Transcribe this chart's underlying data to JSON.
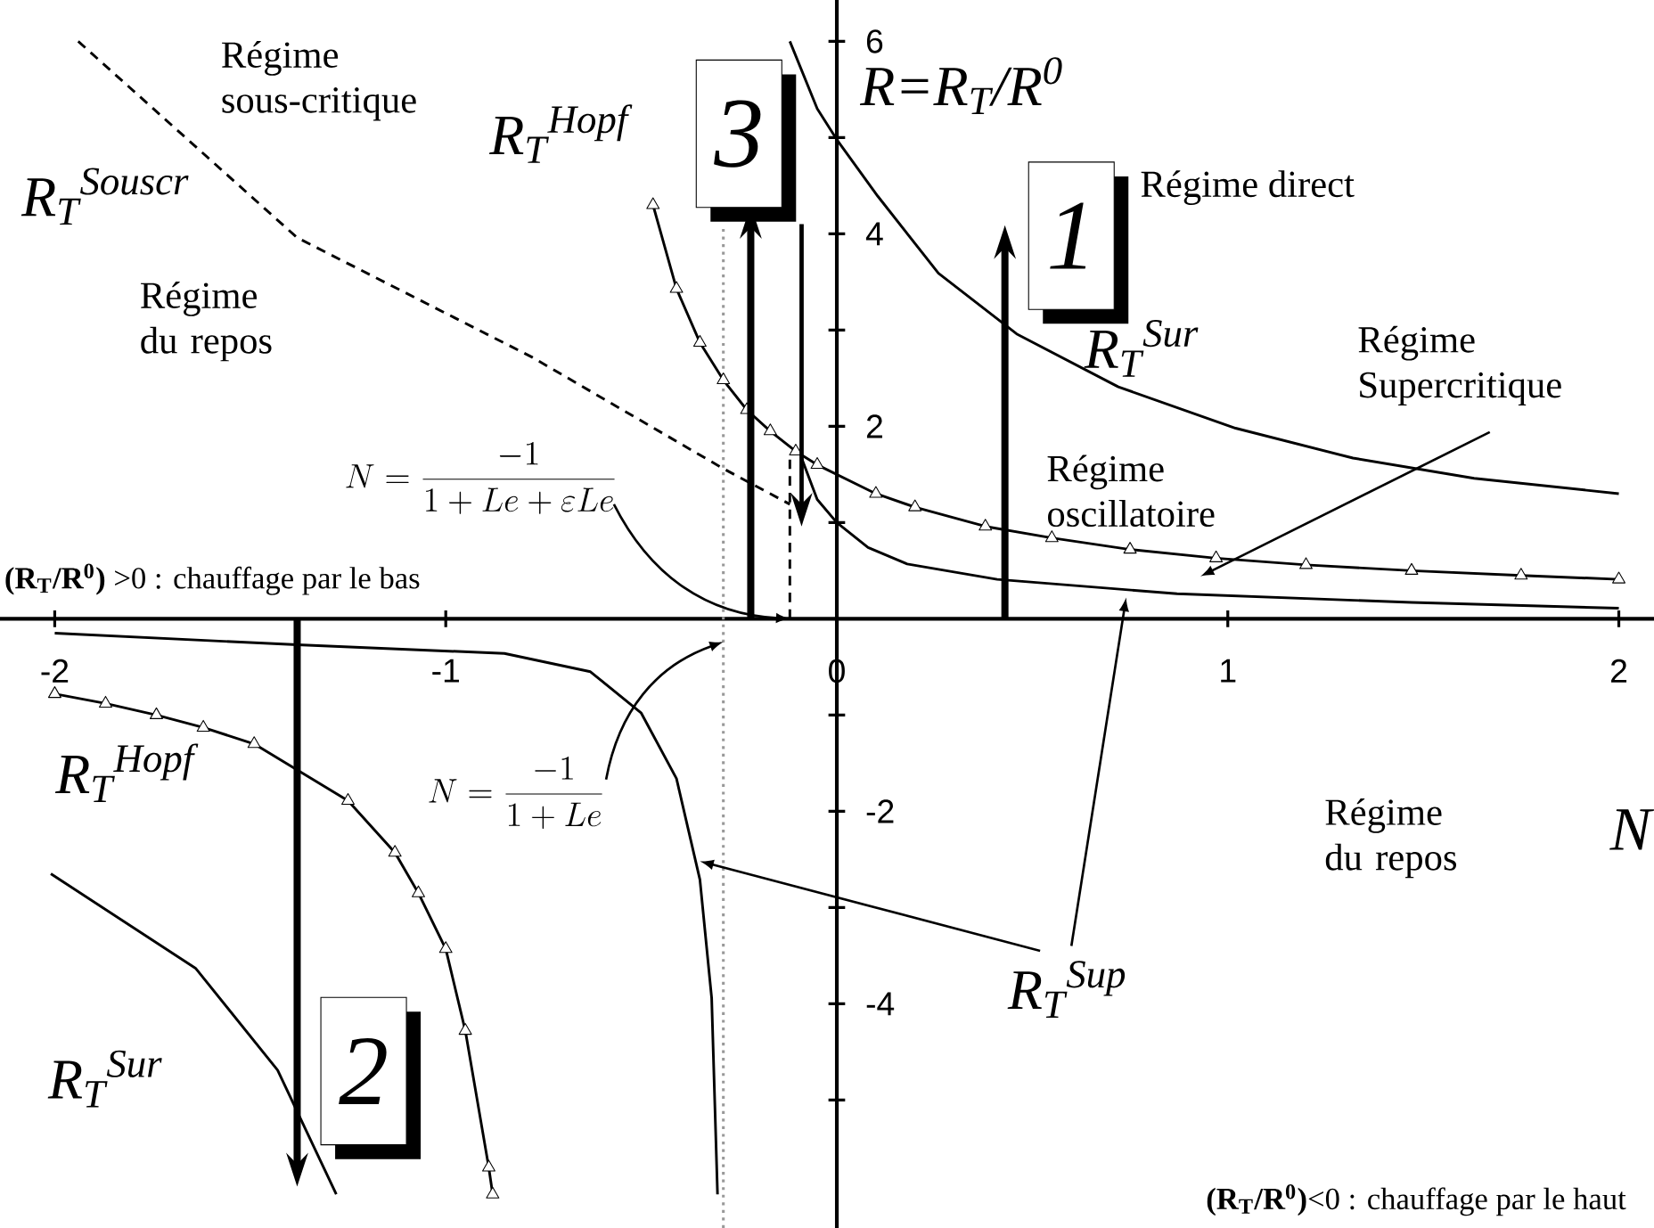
{
  "chart_data": {
    "type": "line",
    "xlabel": "N",
    "ylabel": "R=R$_{T}$/R$^{0}$",
    "xlim": [
      -2.14,
      2.09
    ],
    "ylim": [
      -6.33,
      6.43
    ],
    "xticks": [
      -2,
      -1,
      0,
      1,
      2
    ],
    "yticks": [
      {
        "value": -5,
        "label": null
      },
      -4,
      {
        "value": -3,
        "label": null
      },
      -2,
      {
        "value": -1,
        "label": null
      },
      {
        "value": 1,
        "label": null
      },
      2,
      {
        "value": 3,
        "label": null
      },
      4,
      {
        "value": 5,
        "label": null
      },
      6
    ],
    "grid": false,
    "legend": false,
    "marker": "none",
    "line_style": "solid",
    "series": [
      {
        "name": "R$_{T}$$^{Sur}$",
        "color": "#000000",
        "x": [
          -0.12,
          -0.05,
          0.0,
          0.105,
          0.26,
          0.46,
          0.72,
          1.02,
          1.32,
          1.63,
          2.0
        ],
        "values": [
          6.0,
          5.3,
          4.98,
          4.39,
          3.59,
          2.96,
          2.41,
          1.98,
          1.67,
          1.46,
          1.3
        ]
      },
      {
        "name": "R$_{T}$$^{Sur}$",
        "color": "#000000",
        "x": [
          -2.01,
          -1.64,
          -1.43,
          -1.28
        ],
        "values": [
          -2.65,
          -3.63,
          -4.69,
          -5.98
        ]
      },
      {
        "name": "R$_{T}$$^{Hopf}$",
        "color": "#000000",
        "marker": "triangle",
        "x": [
          -0.47,
          -0.41,
          -0.35,
          -0.29,
          -0.23,
          -0.17,
          -0.105,
          -0.05,
          0.1,
          0.2,
          0.38,
          0.55,
          0.75,
          0.97,
          1.2,
          1.47,
          1.75,
          2.0
        ],
        "values": [
          4.3,
          3.43,
          2.87,
          2.48,
          2.17,
          1.95,
          1.74,
          1.6,
          1.3,
          1.16,
          0.96,
          0.84,
          0.72,
          0.63,
          0.56,
          0.5,
          0.45,
          0.41
        ]
      },
      {
        "name": "R$_{T}$$^{Hopf}$",
        "color": "#000000",
        "marker": "triangle",
        "x": [
          -2.0,
          -1.87,
          -1.74,
          -1.62,
          -1.49,
          -1.25,
          -1.13,
          -1.07,
          -1.0,
          -0.95,
          -0.89,
          -0.88
        ],
        "values": [
          -0.78,
          -0.88,
          -1.0,
          -1.13,
          -1.3,
          -1.89,
          -2.43,
          -2.85,
          -3.43,
          -4.28,
          -5.7,
          -5.98
        ]
      },
      {
        "color": "#000000",
        "x": [
          -0.09,
          -0.05,
          0.0,
          0.08,
          0.18,
          0.41,
          0.87,
          1.47,
          2.0
        ],
        "values": [
          1.67,
          1.24,
          1.0,
          0.74,
          0.57,
          0.41,
          0.26,
          0.17,
          0.11
        ]
      },
      {
        "color": "#000000",
        "x": [
          -2.0,
          -1.38,
          -0.85,
          -0.63,
          -0.5,
          -0.41,
          -0.35,
          -0.32,
          -0.305
        ],
        "values": [
          -0.15,
          -0.27,
          -0.36,
          -0.55,
          -0.98,
          -1.66,
          -2.71,
          -3.94,
          -5.98
        ]
      },
      {
        "name": "R$_{T}$$^{Souscr}$",
        "color": "#000000",
        "line_style": "dashed",
        "x": [
          -1.94,
          -1.38,
          -0.78,
          -0.29,
          -0.12
        ],
        "values": [
          6.0,
          3.96,
          2.72,
          1.56,
          1.19
        ]
      },
      {
        "color": "#000000",
        "line_style": "dashed",
        "x": [
          -0.12,
          -0.12
        ],
        "values": [
          0,
          1.67
        ]
      }
    ],
    "ref_lines": [
      {
        "axis": "x",
        "value": -0.29,
        "color": "#999999",
        "line_style": "dotted"
      }
    ],
    "annotations": [
      "Régime sous-critique",
      "Régime du repos",
      "Régime direct",
      "Régime Supercritique",
      "Régime oscillatoire",
      "Régime du repos",
      "**(R$_{T}$/R$^{0}$)** >0 : chauffage par le bas",
      "**(R$_{T}$/R$^{0}$)**<0 : chauffage par le haut",
      "1",
      "3",
      "2",
      {
        "text": "N=\\frac{-1}{1+Le+\\varepsilon Le}",
        "x": -0.12,
        "y": 0
      },
      {
        "text": "N=\\frac{-1}{1+Le}",
        "x": -0.29,
        "y": -0.24
      },
      {
        "text": "R$_{T}$$^{Sup}$",
        "x": 0.74,
        "y": 0.22
      }
    ]
  }
}
